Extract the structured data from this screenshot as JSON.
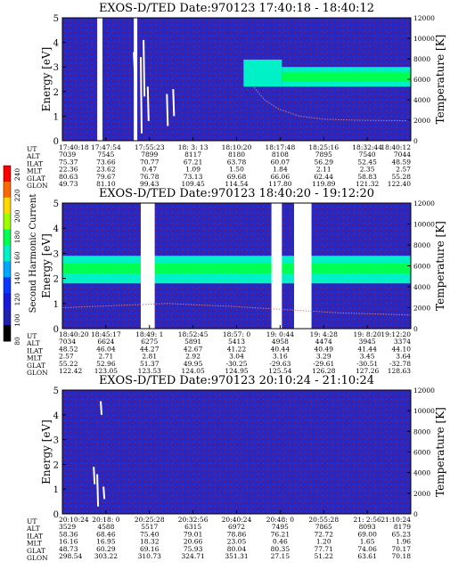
{
  "colorbar": {
    "label": "Second Harmonic Current",
    "ticks": [
      "240",
      "220",
      "200",
      "180",
      "160",
      "140",
      "120",
      "100",
      "80"
    ],
    "colors": [
      "#ff0000",
      "#ff6a00",
      "#ffd800",
      "#9cff00",
      "#00ff50",
      "#00f0c8",
      "#00a8ff",
      "#0a38ff",
      "#1818d8",
      "#2020b0",
      "#000000"
    ]
  },
  "row_labels": [
    "UT",
    "ALT",
    "ILAT",
    "MLT",
    "GLAT",
    "GLON"
  ],
  "panels": [
    {
      "title": "EXOS-D/TED   Date:970123   17:40:18 - 18:40:12",
      "ylabel": "Energy [eV]",
      "ylabel2": "Temperature [K]",
      "yticks": [
        "0",
        "1",
        "2",
        "3",
        "4",
        "5"
      ],
      "y2ticks": [
        "0",
        "2000",
        "4000",
        "6000",
        "8000",
        "10000",
        "12000"
      ],
      "columns": [
        [
          "17:40:18",
          "7039",
          "75.37",
          "22.36",
          "80.63",
          "49.73"
        ],
        [
          "17:47:54",
          "7545",
          "73.66",
          "23.62",
          "79.67",
          "81.10"
        ],
        [
          "17:55:23",
          "7899",
          "70.77",
          "0.47",
          "76.78",
          "99.43"
        ],
        [
          "18: 3: 13",
          "8117",
          "67.21",
          "1.09",
          "73.13",
          "109.45"
        ],
        [
          "18:10:20",
          "8180",
          "63.78",
          "1.50",
          "69.68",
          "114.54"
        ],
        [
          "18:17:48",
          "8108",
          "60.07",
          "1.84",
          "66.06",
          "117.80"
        ],
        [
          "18:25:16",
          "7895",
          "56.29",
          "2.11",
          "62.44",
          "119.89"
        ],
        [
          "18:32:44",
          "7540",
          "52.45",
          "2.35",
          "58.83",
          "121.32"
        ],
        [
          "18:40:12",
          "7044",
          "48.59",
          "2.57",
          "55.28",
          "122.40"
        ]
      ]
    },
    {
      "title": "EXOS-D/TED   Date:970123   18:40:20 - 19:12:20",
      "ylabel": "Energy [eV]",
      "ylabel2": "Temperature [K]",
      "yticks": [
        "0",
        "1",
        "2",
        "3",
        "4",
        "5"
      ],
      "y2ticks": [
        "0",
        "2000",
        "4000",
        "6000",
        "8000",
        "10000",
        "12000"
      ],
      "columns": [
        [
          "18:40:20",
          "7034",
          "48.52",
          "2.57",
          "55.22",
          "122.42"
        ],
        [
          "18:45:17",
          "6624",
          "46.04",
          "2.71",
          "52.96",
          "123.05"
        ],
        [
          "18:49: 1",
          "6275",
          "44.27",
          "2.81",
          "51.37",
          "123.53"
        ],
        [
          "18:52:45",
          "5891",
          "42.67",
          "2.92",
          "49.95",
          "124.05"
        ],
        [
          "18:57: 0",
          "5413",
          "41.22",
          "3.04",
          "-30.25",
          "124.95"
        ],
        [
          "19: 0:44",
          "4958",
          "40.44",
          "3.16",
          "-29.63",
          "125.54"
        ],
        [
          "19: 4:28",
          "4474",
          "40.49",
          "3.29",
          "-29.61",
          "126.28"
        ],
        [
          "19: 8:20",
          "3945",
          "41.44",
          "3.45",
          "-30.51",
          "127.26"
        ],
        [
          "19:12:20",
          "3374",
          "44.10",
          "3.64",
          "-32.78",
          "128.63"
        ]
      ]
    },
    {
      "title": "EXOS-D/TED   Date:970123   20:10:24 - 21:10:24",
      "ylabel": "Energy [eV]",
      "ylabel2": "Temperature [K]",
      "yticks": [
        "0",
        "1",
        "2",
        "3",
        "4",
        "5"
      ],
      "y2ticks": [
        "0",
        "2000",
        "4000",
        "6000",
        "8000",
        "10000",
        "12000"
      ],
      "columns": [
        [
          "20:10:24",
          "3529",
          "58.36",
          "16.16",
          "48.73",
          "298.54"
        ],
        [
          "20:18: 0",
          "4588",
          "68.46",
          "16.95",
          "60.29",
          "303.22"
        ],
        [
          "20:25:28",
          "5517",
          "75.40",
          "18.32",
          "69.16",
          "310.73"
        ],
        [
          "20:32:56",
          "6315",
          "79.01",
          "20.66",
          "75.93",
          "324.71"
        ],
        [
          "20:40:24",
          "6972",
          "78.86",
          "23.05",
          "80.04",
          "351.31"
        ],
        [
          "20:48: 0",
          "7495",
          "76.21",
          "0.46",
          "80.35",
          "27.15"
        ],
        [
          "20:55:28",
          "7865",
          "72.72",
          "1.20",
          "77.71",
          "51.22"
        ],
        [
          "21: 2:56",
          "8093",
          "69.00",
          "1.65",
          "74.06",
          "63.61"
        ],
        [
          "21:10:24",
          "8179",
          "65.23",
          "1.96",
          "70.17",
          "70.18"
        ]
      ]
    }
  ],
  "chart_data": [
    {
      "type": "heatmap",
      "title": "EXOS-D/TED   Date:970123   17:40:18 - 18:40:12",
      "ylabel": "Energy [eV]",
      "y2label": "Temperature [K]",
      "ylim": [
        0,
        5
      ],
      "y2lim": [
        0,
        12000
      ],
      "x_ticks": [
        "17:40:18",
        "17:47:54",
        "17:55:23",
        "18: 3: 13",
        "18:10:20",
        "18:17:48",
        "18:25:16",
        "18:32:44",
        "18:40:12"
      ],
      "data_gaps_fraction": [
        [
          0.1,
          0.115
        ],
        [
          0.205,
          0.215
        ]
      ],
      "bands": [
        {
          "x": [
            0.52,
            0.63
          ],
          "e": [
            2.2,
            3.3
          ],
          "level": 5
        },
        {
          "x": [
            0.63,
            1.0
          ],
          "e": [
            2.2,
            3.0
          ],
          "level": 5
        },
        {
          "x": [
            0.63,
            1.0
          ],
          "e": [
            2.4,
            2.8
          ],
          "level": 6
        }
      ],
      "temperature_trace": {
        "x": [
          0.55,
          0.58,
          0.62,
          0.68,
          0.75,
          0.85,
          1.0
        ],
        "T": [
          5200,
          4000,
          3100,
          2400,
          2100,
          2000,
          1950
        ]
      },
      "colorbar_label": "Second Harmonic Current",
      "colorbar_range": [
        80,
        240
      ]
    },
    {
      "type": "heatmap",
      "title": "EXOS-D/TED   Date:970123   18:40:20 - 19:12:20",
      "ylabel": "Energy [eV]",
      "y2label": "Temperature [K]",
      "ylim": [
        0,
        5
      ],
      "y2lim": [
        0,
        12000
      ],
      "x_ticks": [
        "18:40:20",
        "18:45:17",
        "18:49: 1",
        "18:52:45",
        "18:57: 0",
        "19: 0:44",
        "19: 4:28",
        "19: 8:20",
        "19:12:20"
      ],
      "data_gaps_fraction": [
        [
          0.225,
          0.265
        ],
        [
          0.6,
          0.63
        ],
        [
          0.665,
          0.715
        ]
      ],
      "bands": [
        {
          "x": [
            0.0,
            1.0
          ],
          "e": [
            1.8,
            2.9
          ],
          "level": 5
        },
        {
          "x": [
            0.0,
            1.0
          ],
          "e": [
            2.2,
            2.6
          ],
          "level": 6
        }
      ],
      "temperature_trace": {
        "x": [
          0.0,
          0.3,
          0.5,
          0.65,
          0.8,
          1.0
        ],
        "T": [
          2000,
          2400,
          2100,
          1800,
          1500,
          1300
        ]
      },
      "colorbar_label": "Second Harmonic Current",
      "colorbar_range": [
        80,
        240
      ]
    },
    {
      "type": "heatmap",
      "title": "EXOS-D/TED   Date:970123   20:10:24 - 21:10:24",
      "ylabel": "Energy [eV]",
      "y2label": "Temperature [K]",
      "ylim": [
        0,
        5
      ],
      "y2lim": [
        0,
        12000
      ],
      "x_ticks": [
        "20:10:24",
        "20:18: 0",
        "20:25:28",
        "20:32:56",
        "20:40:24",
        "20:48: 0",
        "20:55:28",
        "21: 2:56",
        "21:10:24"
      ],
      "bands": [],
      "colorbar_label": "Second Harmonic Current",
      "colorbar_range": [
        80,
        240
      ]
    }
  ]
}
